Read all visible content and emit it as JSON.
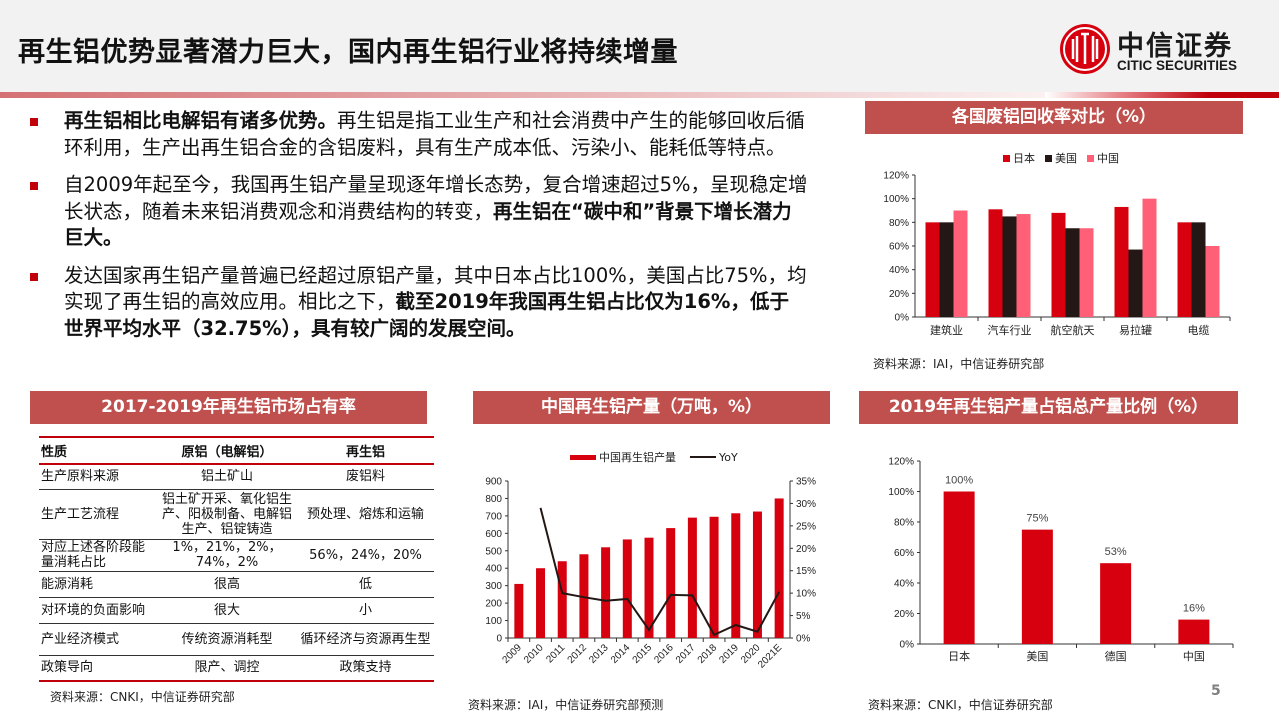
{
  "header": {
    "title": "再生铝优势显著潜力巨大，国内再生铝行业将持续增量",
    "logo_cn": "中信证券",
    "logo_en": "CITIC SECURITIES"
  },
  "bullets": [
    {
      "bold_lead": "再生铝相比电解铝有诸多优势。",
      "text": "再生铝是指工业生产和社会消费中产生的能够回收后循环利用，生产出再生铝合金的含铝废料，具有生产成本低、污染小、能耗低等特点。"
    },
    {
      "text": "自2009年起至今，我国再生铝产量呈现逐年增长态势，复合增速超过5%，呈现稳定增长状态，随着未来铝消费观念和消费结构的转变，",
      "bold_tail": "再生铝在“碳中和”背景下增长潜力巨大。"
    },
    {
      "text": "发达国家再生铝产量普遍已经超过原铝产量，其中日本占比100%，美国占比75%，均实现了再生铝的高效应用。相比之下，",
      "bold_tail": "截至2019年我国再生铝占比仅为16%，低于世界平均水平（32.75%），具有较广阔的发展空间。"
    }
  ],
  "table_section": {
    "title": "2017-2019年再生铝市场占有率",
    "headers": [
      "性质",
      "原铝（电解铝）",
      "再生铝"
    ],
    "rows": [
      [
        "生产原料来源",
        "铝土矿山",
        "废铝料"
      ],
      [
        "生产工艺流程",
        "铝土矿开采、氧化铝生产、阳极制备、电解铝生产、铝锭铸造",
        "预处理、熔炼和运输"
      ],
      [
        "对应上述各阶段能量消耗占比",
        "1%，21%，2%，74%，2%",
        "56%，24%，20%"
      ],
      [
        "能源消耗",
        "很高",
        "低"
      ],
      [
        "对环境的负面影响",
        "很大",
        "小"
      ],
      [
        "产业经济模式",
        "传统资源消耗型",
        "循环经济与资源再生型"
      ],
      [
        "政策导向",
        "限产、调控",
        "政策支持"
      ]
    ],
    "source": "资料来源：CNKI，中信证券研究部"
  },
  "page_number": "5",
  "chart_data": [
    {
      "type": "bar",
      "title": "各国废铝回收率对比（%）",
      "categories": [
        "建筑业",
        "汽车行业",
        "航空航天",
        "易拉罐",
        "电缆"
      ],
      "series": [
        {
          "name": "日本",
          "color": "#d7000f",
          "values": [
            80,
            91,
            88,
            93,
            80
          ]
        },
        {
          "name": "美国",
          "color": "#231815",
          "values": [
            80,
            85,
            75,
            57,
            80
          ]
        },
        {
          "name": "中国",
          "color": "#ff6077",
          "values": [
            90,
            87,
            75,
            100,
            60
          ]
        }
      ],
      "yticks": [
        "0%",
        "20%",
        "40%",
        "60%",
        "80%",
        "100%",
        "120%"
      ],
      "ylim": [
        0,
        120
      ],
      "legend_position": "top",
      "grid": false,
      "source": "资料来源：IAI，中信证券研究部"
    },
    {
      "type": "bar+line",
      "title": "中国再生铝产量（万吨，%）",
      "categories": [
        "2009",
        "2010",
        "2011",
        "2012",
        "2013",
        "2014",
        "2015",
        "2016",
        "2017",
        "2018",
        "2019",
        "2020",
        "2021E"
      ],
      "series": [
        {
          "name": "中国再生铝产量",
          "type": "bar",
          "axis": "left",
          "color": "#d7000f",
          "values": [
            310,
            400,
            440,
            480,
            520,
            565,
            575,
            630,
            690,
            695,
            715,
            725,
            800
          ]
        },
        {
          "name": "YoY",
          "type": "line",
          "axis": "right",
          "color": "#231815",
          "values": [
            null,
            29.0,
            10.0,
            9.1,
            8.3,
            8.7,
            1.8,
            9.6,
            9.5,
            0.7,
            2.9,
            1.4,
            10.3
          ]
        }
      ],
      "yticks_left": [
        "0",
        "100",
        "200",
        "300",
        "400",
        "500",
        "600",
        "700",
        "800",
        "900"
      ],
      "yticks_right": [
        "0%",
        "5%",
        "10%",
        "15%",
        "20%",
        "25%",
        "30%",
        "35%"
      ],
      "ylim_left": [
        0,
        900
      ],
      "ylim_right": [
        0,
        35
      ],
      "legend_position": "top",
      "grid": false,
      "source": "资料来源：IAI，中信证券研究部预测"
    },
    {
      "type": "bar",
      "title": "2019年再生铝产量占铝总产量比例（%）",
      "categories": [
        "日本",
        "美国",
        "德国",
        "中国"
      ],
      "values": [
        100,
        75,
        53,
        16
      ],
      "data_labels": [
        "100%",
        "75%",
        "53%",
        "16%"
      ],
      "color": "#d7000f",
      "yticks": [
        "0%",
        "20%",
        "40%",
        "60%",
        "80%",
        "100%",
        "120%"
      ],
      "ylim": [
        0,
        120
      ],
      "grid": false,
      "source": "资料来源：CNKI，中信证券研究部"
    }
  ]
}
